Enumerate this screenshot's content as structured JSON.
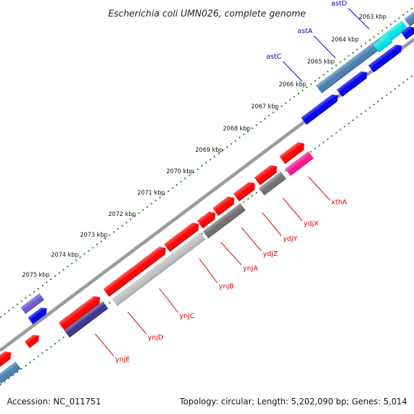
{
  "title": "Escherichia coli UMN026, complete genome",
  "footer": {
    "accession": "Accession: NC_011751",
    "summary": "Topology: circular; Length: 5,202,090 bp; Genes: 5,014"
  },
  "ticks": [
    "2063 kbp",
    "2064 kbp",
    "2065 kbp",
    "2066 kbp",
    "2067 kbp",
    "2068 kbp",
    "2069 kbp",
    "2070 kbp",
    "2071 kbp",
    "2072 kbp",
    "2073 kbp",
    "2074 kbp",
    "2075 kbp"
  ],
  "blue_labels": [
    "astD",
    "astA",
    "astC"
  ],
  "red_labels": [
    "xthA",
    "ydjX",
    "ydjY",
    "ydjZ",
    "ynjA",
    "ynjB",
    "ynjC",
    "ynjD",
    "ynjE"
  ],
  "colors": {
    "red": "#ff0000",
    "blue": "#0000ee",
    "steel": "#4a7fb0",
    "cyan": "#00e5e5",
    "magenta": "#ff1493",
    "gray": "#707070",
    "lightgray": "#c0c0c0",
    "navy": "#3a3490",
    "slate": "#6a5acd",
    "backbone": "#888888",
    "dots": "#228b22",
    "label_blue": "#0000cc",
    "label_red": "#dd0000"
  }
}
